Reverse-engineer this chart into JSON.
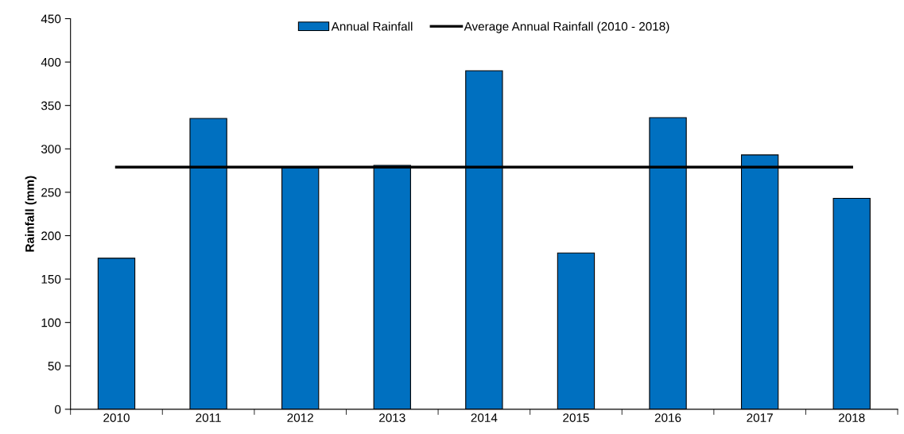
{
  "chart_data": {
    "type": "bar",
    "ylabel": "Rainfall (mm)",
    "categories": [
      "2010",
      "2011",
      "2012",
      "2013",
      "2014",
      "2015",
      "2016",
      "2017",
      "2018"
    ],
    "series": [
      {
        "name": "Annual Rainfall",
        "color": "#0070c0",
        "values": [
          174,
          335,
          279,
          281,
          390,
          180,
          336,
          293,
          243
        ]
      },
      {
        "name": "Average Annual Rainfall (2010 - 2018)",
        "type": "line",
        "color": "#000000",
        "values": [
          279,
          279,
          279,
          279,
          279,
          279,
          279,
          279,
          279
        ]
      }
    ],
    "ylim": [
      0,
      450
    ],
    "yticks": [
      0,
      50,
      100,
      150,
      200,
      250,
      300,
      350,
      400,
      450
    ],
    "grid": false,
    "legend": "top",
    "marker": "none",
    "line_style": "solid"
  }
}
